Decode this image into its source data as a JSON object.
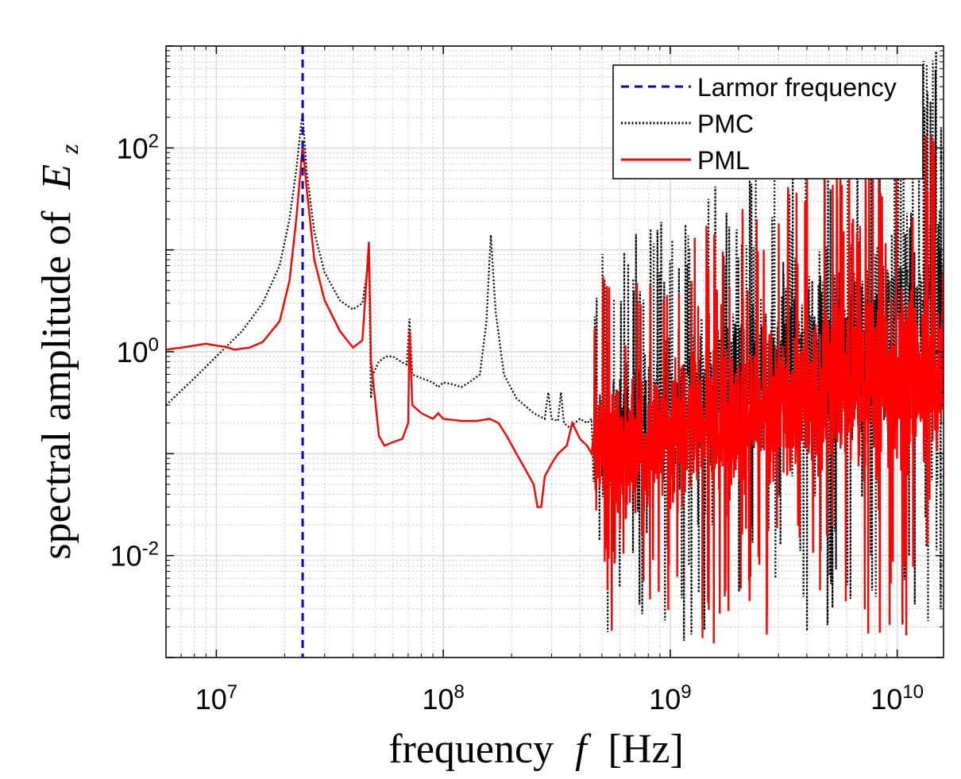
{
  "chart_data": {
    "type": "line",
    "xscale": "log",
    "yscale": "log",
    "xlim": [
      6000000,
      16000000000
    ],
    "ylim": [
      0.001,
      1000
    ],
    "grid": true,
    "xlabel": {
      "prefix": "frequency",
      "symbol": "f",
      "unit": "[Hz]"
    },
    "ylabel": {
      "prefix": "spectral amplitude of",
      "symbol": "E",
      "subscript": "z"
    },
    "x_ticks": [
      {
        "value": 10000000,
        "base": "10",
        "exp": "7"
      },
      {
        "value": 100000000,
        "base": "10",
        "exp": "8"
      },
      {
        "value": 1000000000,
        "base": "10",
        "exp": "9"
      },
      {
        "value": 10000000000,
        "base": "10",
        "exp": "10"
      }
    ],
    "y_ticks": [
      {
        "value": 0.01,
        "base": "10",
        "exp": "-2"
      },
      {
        "value": 1,
        "base": "10",
        "exp": "0"
      },
      {
        "value": 100,
        "base": "10",
        "exp": "2"
      }
    ],
    "legend_position": "top-right",
    "larmor_frequency": 24000000,
    "series": [
      {
        "name": "Larmor frequency",
        "color": "#0000cc",
        "style": "dashed",
        "x": [
          24000000,
          24000000
        ],
        "y": [
          0.001,
          1000
        ]
      },
      {
        "name": "PMC",
        "color": "#000000",
        "style": "dotted",
        "x": [
          6000000,
          8000000,
          10000000,
          13000000,
          16000000,
          19000000,
          21000000,
          22500000,
          23500000,
          24000000,
          25000000,
          27000000,
          30000000,
          35000000,
          40000000,
          44000000,
          47000000,
          48000000,
          49000000,
          52000000,
          56000000,
          60000000,
          65000000,
          69000000,
          71000000,
          73000000,
          80000000,
          90000000,
          95000000,
          100000000,
          110000000,
          120000000,
          130000000,
          145000000,
          155000000,
          162000000,
          170000000,
          185000000,
          210000000,
          250000000,
          280000000,
          290000000,
          300000000,
          320000000,
          330000000,
          340000000,
          360000000,
          380000000,
          400000000,
          430000000,
          450000000
        ],
        "y": [
          0.3,
          0.55,
          0.9,
          1.6,
          3,
          7,
          20,
          60,
          150,
          220,
          60,
          15,
          6,
          3.2,
          2.6,
          3,
          8,
          0.35,
          0.6,
          0.8,
          0.9,
          0.9,
          0.8,
          0.75,
          2.1,
          0.6,
          0.55,
          0.5,
          0.45,
          0.5,
          0.48,
          0.45,
          0.5,
          0.6,
          2,
          14,
          2.5,
          0.6,
          0.35,
          0.25,
          0.22,
          0.4,
          0.22,
          0.21,
          0.4,
          0.2,
          0.18,
          0.2,
          0.22,
          0.2,
          0.22
        ]
      },
      {
        "name": "PML",
        "color": "#ff0000",
        "style": "solid",
        "x": [
          6000000,
          7000000,
          8000000,
          9000000,
          10000000,
          11000000,
          12000000,
          14000000,
          16000000,
          19000000,
          21000000,
          22500000,
          23500000,
          24000000,
          25000000,
          27000000,
          30000000,
          35000000,
          40000000,
          44000000,
          47000000,
          48000000,
          50000000,
          52000000,
          55000000,
          60000000,
          66000000,
          70000000,
          71000000,
          73000000,
          80000000,
          90000000,
          95000000,
          100000000,
          120000000,
          140000000,
          160000000,
          175000000,
          190000000,
          210000000,
          230000000,
          250000000,
          260000000,
          270000000,
          280000000,
          300000000,
          320000000,
          350000000,
          370000000,
          400000000,
          430000000,
          450000000
        ],
        "y": [
          1.05,
          1.1,
          1.15,
          1.2,
          1.15,
          1.12,
          1.05,
          1.1,
          1.25,
          2,
          5,
          20,
          60,
          110,
          40,
          8,
          3.2,
          1.6,
          1.1,
          1.3,
          12,
          0.8,
          0.35,
          0.15,
          0.12,
          0.13,
          0.14,
          0.2,
          1.6,
          0.3,
          0.25,
          0.22,
          0.25,
          0.22,
          0.21,
          0.21,
          0.22,
          0.2,
          0.15,
          0.1,
          0.07,
          0.05,
          0.03,
          0.03,
          0.06,
          0.08,
          0.1,
          0.12,
          0.2,
          0.14,
          0.12,
          0.1
        ]
      }
    ]
  }
}
